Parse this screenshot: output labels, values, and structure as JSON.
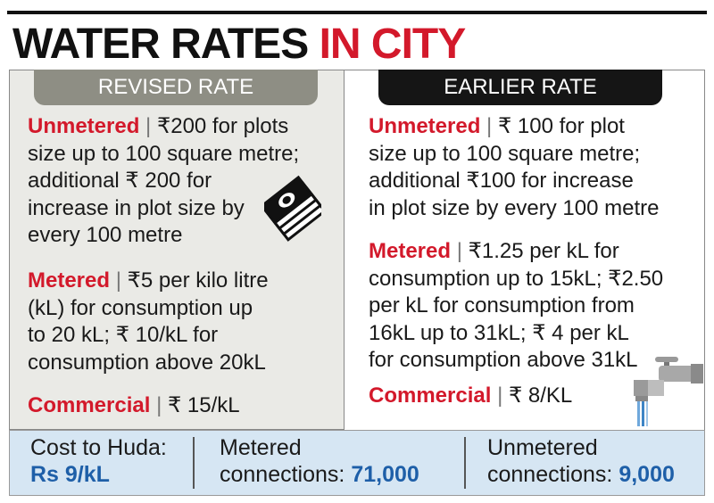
{
  "title": {
    "part1": "WATER RATES",
    "part2": "IN CITY"
  },
  "revised": {
    "header": "REVISED RATE",
    "unmetered": {
      "label": "Unmetered",
      "sep": "|",
      "lines": [
        "₹200 for plots",
        "size up to 100 square metre;",
        "additional ₹ 200 for",
        "increase in plot size by",
        "every 100 metre"
      ]
    },
    "metered": {
      "label": "Metered",
      "sep": "|",
      "lines": [
        "₹5 per kilo litre",
        "(kL) for consumption up",
        "to 20 kL; ₹ 10/kL for",
        "consumption above 20kL"
      ]
    },
    "commercial": {
      "label": "Commercial",
      "sep": "|",
      "text": "₹ 15/kL"
    }
  },
  "earlier": {
    "header": "EARLIER RATE",
    "unmetered": {
      "label": "Unmetered",
      "sep": "|",
      "lines": [
        "₹ 100 for plot",
        "size up to 100 square metre;",
        "additional ₹100 for increase",
        "in plot size by every 100 metre"
      ]
    },
    "metered": {
      "label": "Metered",
      "sep": "|",
      "lines": [
        "₹1.25 per kL for",
        "consumption up to 15kL; ₹2.50",
        "per kL for consumption from",
        "16kL up to 31kL; ₹ 4 per kL",
        "for consumption above 31kL"
      ]
    },
    "commercial": {
      "label": "Commercial",
      "sep": "|",
      "text": "₹ 8/KL"
    }
  },
  "footer": {
    "cost": {
      "label": "Cost to Huda:",
      "value": "Rs 9/kL"
    },
    "metered": {
      "label": "Metered",
      "sublabel": "connections:",
      "value": "71,000"
    },
    "unmetered": {
      "label": "Unmetered",
      "sublabel": "connections:",
      "value": "9,000"
    }
  },
  "icons": {
    "cash": "cash-stack-icon",
    "tap": "water-tap-icon"
  },
  "colors": {
    "accent_red": "#d3192b",
    "value_blue": "#1e5fa8",
    "footer_bg": "#d6e6f3",
    "revised_header": "#8e8e84",
    "earlier_header": "#151515"
  }
}
